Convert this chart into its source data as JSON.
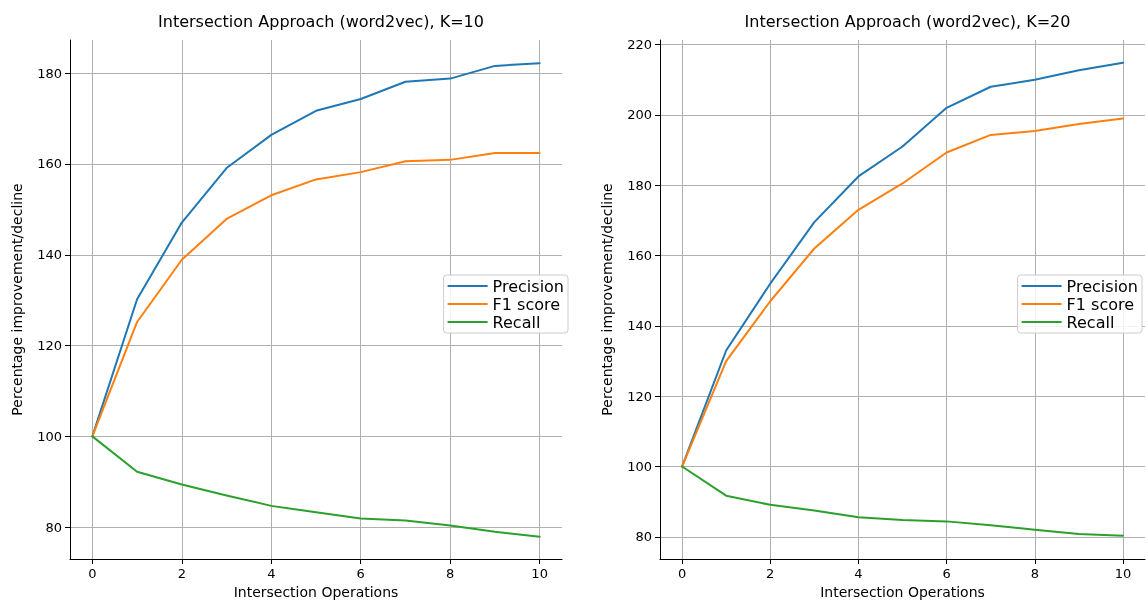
{
  "chart_data": [
    {
      "type": "line",
      "title": "Intersection Approach (word2vec), K=10",
      "xlabel": "Intersection Operations",
      "ylabel": "Percentage improvement/decline",
      "x": [
        0,
        1,
        2,
        3,
        4,
        5,
        6,
        7,
        8,
        9,
        10
      ],
      "series": [
        {
          "name": "Precision",
          "color": "#1f77b4",
          "values": [
            100,
            130.2,
            147.1,
            159.1,
            166.4,
            171.7,
            174.3,
            178.1,
            178.8,
            181.6,
            182.2
          ]
        },
        {
          "name": "F1 score",
          "color": "#ff7f0e",
          "values": [
            100,
            125.2,
            138.9,
            147.9,
            153.1,
            156.6,
            158.2,
            160.6,
            160.9,
            162.4,
            162.4
          ]
        },
        {
          "name": "Recall",
          "color": "#2ca02c",
          "values": [
            100,
            92.2,
            89.4,
            87.0,
            84.7,
            83.3,
            81.9,
            81.5,
            80.4,
            79.0,
            77.9
          ]
        }
      ],
      "xlim": [
        -0.5,
        10.5
      ],
      "xticks": [
        0,
        2,
        4,
        6,
        8,
        10
      ],
      "ylim": [
        73,
        187.3
      ],
      "yticks": [
        80,
        100,
        120,
        140,
        160,
        180
      ],
      "grid": true,
      "legend": "right",
      "marker": "none",
      "line_style": "solid"
    },
    {
      "type": "line",
      "title": "Intersection Approach (word2vec), K=20",
      "xlabel": "Intersection Operations",
      "ylabel": "Percentage improvement/decline",
      "x": [
        0,
        1,
        2,
        3,
        4,
        5,
        6,
        7,
        8,
        9,
        10
      ],
      "series": [
        {
          "name": "Precision",
          "color": "#1f77b4",
          "values": [
            100,
            133,
            152,
            169.5,
            182.5,
            191,
            202,
            208,
            210,
            212.7,
            214.8
          ]
        },
        {
          "name": "F1 score",
          "color": "#ff7f0e",
          "values": [
            100,
            130,
            147,
            162,
            173,
            180.5,
            189.3,
            194.3,
            195.4,
            197.4,
            199
          ]
        },
        {
          "name": "Recall",
          "color": "#2ca02c",
          "values": [
            100,
            91.7,
            89.1,
            87.5,
            85.6,
            84.8,
            84.4,
            83.3,
            82,
            80.8,
            80.3
          ]
        }
      ],
      "xlim": [
        -0.5,
        10.5
      ],
      "xticks": [
        0,
        2,
        4,
        6,
        8,
        10
      ],
      "ylim": [
        73.7,
        221.3
      ],
      "yticks": [
        80,
        100,
        120,
        140,
        160,
        180,
        200,
        220
      ],
      "grid": true,
      "legend": "right",
      "marker": "none",
      "line_style": "solid"
    }
  ]
}
